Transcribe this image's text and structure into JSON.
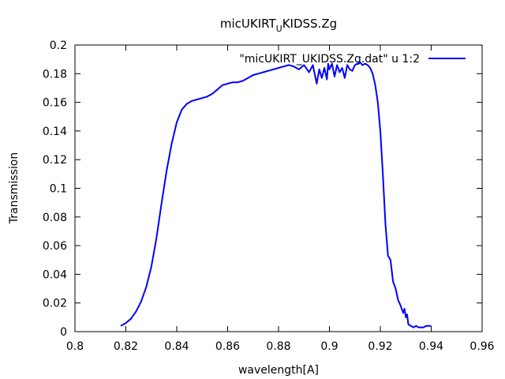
{
  "chart_data": {
    "type": "line",
    "title": "micUKIRT_UKIDSS.Zg",
    "title_main_parts": [
      "micUKIRT",
      "U",
      "KIDSS.Zg"
    ],
    "xlabel": "wavelength[A]",
    "ylabel": "Transmission",
    "xlim": [
      0.8,
      0.96
    ],
    "ylim": [
      0,
      0.2
    ],
    "xticks": [
      "0.8",
      "0.82",
      "0.84",
      "0.86",
      "0.88",
      "0.9",
      "0.92",
      "0.94",
      "0.96"
    ],
    "yticks": [
      "0",
      "0.02",
      "0.04",
      "0.06",
      "0.08",
      "0.1",
      "0.12",
      "0.14",
      "0.16",
      "0.18",
      "0.2"
    ],
    "legend": "top-right",
    "grid": false,
    "series": [
      {
        "name": "\"micUKIRT_UKIDSS.Zg.dat\" u 1:2",
        "color": "#0000ff",
        "x": [
          0.818,
          0.82,
          0.822,
          0.824,
          0.826,
          0.828,
          0.83,
          0.832,
          0.834,
          0.836,
          0.838,
          0.84,
          0.842,
          0.844,
          0.846,
          0.848,
          0.85,
          0.852,
          0.854,
          0.856,
          0.858,
          0.86,
          0.862,
          0.864,
          0.866,
          0.868,
          0.87,
          0.872,
          0.874,
          0.876,
          0.878,
          0.88,
          0.882,
          0.884,
          0.886,
          0.888,
          0.89,
          0.892,
          0.8935,
          0.895,
          0.896,
          0.897,
          0.898,
          0.899,
          0.8995,
          0.9,
          0.901,
          0.902,
          0.903,
          0.904,
          0.905,
          0.906,
          0.907,
          0.908,
          0.909,
          0.91,
          0.911,
          0.912,
          0.913,
          0.914,
          0.915,
          0.916,
          0.917,
          0.918,
          0.919,
          0.92,
          0.921,
          0.922,
          0.923,
          0.924,
          0.925,
          0.926,
          0.927,
          0.928,
          0.929,
          0.9295,
          0.93,
          0.9305,
          0.931,
          0.932,
          0.933,
          0.934,
          0.935,
          0.936,
          0.937,
          0.938,
          0.939,
          0.94
        ],
        "y": [
          0.004,
          0.006,
          0.009,
          0.014,
          0.021,
          0.031,
          0.045,
          0.065,
          0.089,
          0.112,
          0.131,
          0.146,
          0.155,
          0.159,
          0.161,
          0.162,
          0.163,
          0.164,
          0.166,
          0.169,
          0.172,
          0.173,
          0.174,
          0.174,
          0.175,
          0.177,
          0.179,
          0.18,
          0.181,
          0.182,
          0.183,
          0.184,
          0.185,
          0.186,
          0.185,
          0.183,
          0.186,
          0.181,
          0.186,
          0.173,
          0.183,
          0.177,
          0.184,
          0.176,
          0.187,
          0.183,
          0.187,
          0.178,
          0.186,
          0.181,
          0.184,
          0.177,
          0.186,
          0.183,
          0.182,
          0.186,
          0.187,
          0.188,
          0.186,
          0.187,
          0.186,
          0.184,
          0.18,
          0.172,
          0.16,
          0.14,
          0.11,
          0.075,
          0.053,
          0.05,
          0.035,
          0.03,
          0.022,
          0.018,
          0.013,
          0.016,
          0.01,
          0.012,
          0.005,
          0.004,
          0.003,
          0.004,
          0.003,
          0.003,
          0.003,
          0.004,
          0.004,
          0.004
        ]
      }
    ]
  }
}
